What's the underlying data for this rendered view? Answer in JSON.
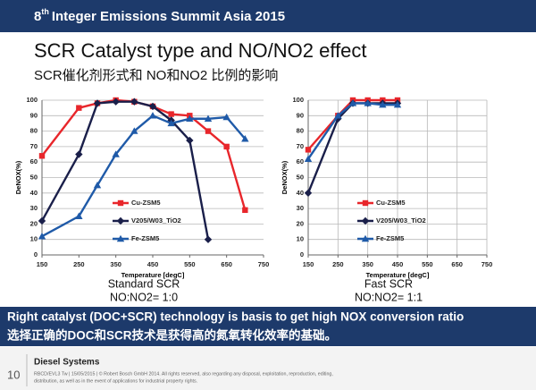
{
  "header": {
    "number": "8",
    "sup": "th",
    "text": "Integer Emissions Summit Asia 2015"
  },
  "title": "SCR Catalyst type and NO/NO2 effect",
  "subtitle": "SCR催化剂形式和 NO和NO2 比例的影响",
  "chart_data": [
    {
      "type": "line",
      "xlabel": "Temperature [degC]",
      "ylabel": "DeNOX(%)",
      "xlim": [
        150,
        750
      ],
      "xticks": [
        150,
        250,
        350,
        450,
        550,
        650,
        750
      ],
      "ylim": [
        0,
        100
      ],
      "yticks": [
        0,
        10,
        20,
        30,
        40,
        50,
        60,
        70,
        80,
        90,
        100
      ],
      "grid": "y",
      "legend": "lower center",
      "captions": [
        "Standard SCR",
        "NO:NO2= 1:0"
      ],
      "series": [
        {
          "name": "Cu-ZSM5",
          "color": "#e8262b",
          "marker": "square",
          "x": [
            150,
            250,
            300,
            350,
            400,
            450,
            500,
            550,
            600,
            650,
            700
          ],
          "values": [
            64,
            95,
            98,
            100,
            99,
            96,
            91,
            90,
            80,
            70,
            29
          ]
        },
        {
          "name": "V205/W03_TiO2",
          "color": "#1a1f4a",
          "marker": "diamond",
          "x": [
            150,
            250,
            300,
            350,
            400,
            450,
            500,
            550,
            600
          ],
          "values": [
            22,
            65,
            98,
            99,
            99,
            96,
            87,
            74,
            10
          ]
        },
        {
          "name": "Fe-ZSM5",
          "color": "#1f5aa8",
          "marker": "triangle",
          "x": [
            150,
            250,
            300,
            350,
            400,
            450,
            500,
            550,
            600,
            650,
            700
          ],
          "values": [
            12,
            25,
            45,
            65,
            80,
            90,
            85,
            88,
            88,
            89,
            75
          ]
        }
      ]
    },
    {
      "type": "line",
      "xlabel": "Temperature [degC]",
      "ylabel": "DeNOX(%)",
      "xlim": [
        150,
        750
      ],
      "xticks": [
        150,
        250,
        350,
        450,
        550,
        650,
        750
      ],
      "ylim": [
        0,
        100
      ],
      "yticks": [
        0,
        10,
        20,
        30,
        40,
        50,
        60,
        70,
        80,
        90,
        100
      ],
      "grid": "both",
      "legend": "lower center",
      "captions": [
        "Fast SCR",
        "NO:NO2= 1:1"
      ],
      "series": [
        {
          "name": "Cu-ZSM5",
          "color": "#e8262b",
          "marker": "square",
          "x": [
            150,
            250,
            300,
            350,
            400,
            450
          ],
          "values": [
            68,
            90,
            100,
            100,
            100,
            100
          ]
        },
        {
          "name": "V205/W03_TiO2",
          "color": "#1a1f4a",
          "marker": "diamond",
          "x": [
            150,
            250,
            300,
            350,
            400,
            450
          ],
          "values": [
            40,
            88,
            98,
            98,
            98,
            98
          ]
        },
        {
          "name": "Fe-ZSM5",
          "color": "#1f5aa8",
          "marker": "triangle",
          "x": [
            150,
            250,
            300,
            350,
            400,
            450
          ],
          "values": [
            62,
            90,
            98,
            98,
            97,
            97
          ]
        }
      ]
    }
  ],
  "banner": [
    "Right catalyst (DOC+SCR) technology is basis to get  high NOX conversion ratio",
    "选择正确的DOC和SCR技术是获得高的氮氧转化效率的基础。"
  ],
  "footer": {
    "page": "10",
    "unit": "Diesel Systems",
    "legal": [
      "RBCD/EVL3 Tw | 15/05/2015 | © Robert Bosch GmbH 2014. All rights reserved, also regarding any disposal, exploitation, reproduction, editing,",
      "distribution, as well as in the event of applications for industrial property rights."
    ]
  }
}
